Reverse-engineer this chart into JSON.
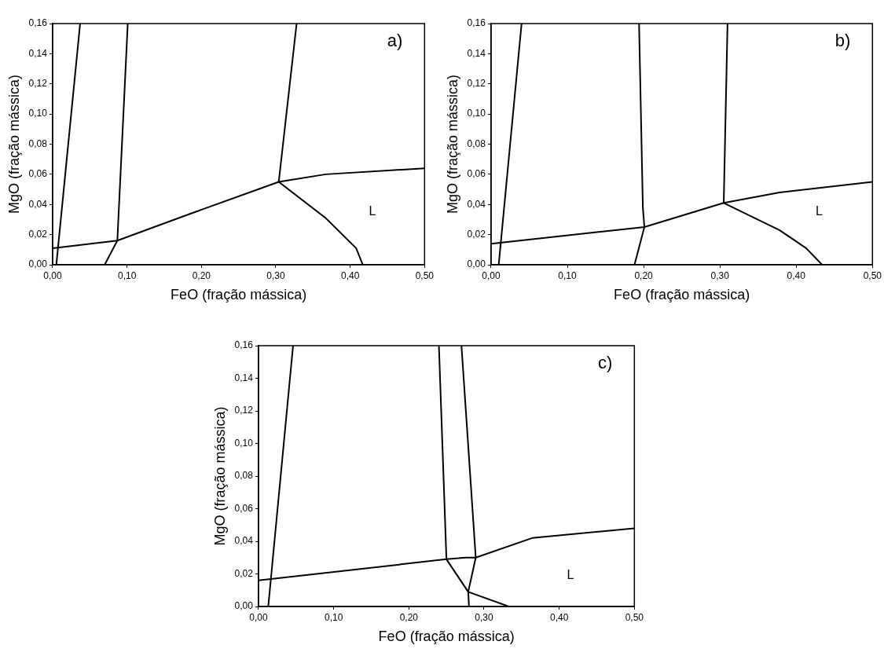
{
  "chart_data": [
    {
      "type": "line",
      "xlabel": "FeO (fração mássica)",
      "ylabel": "MgO (fração mássica)",
      "xlim": [
        0,
        0.5
      ],
      "ylim": [
        0,
        0.16
      ],
      "xticks": [
        {
          "value": 0,
          "label": "0,00"
        },
        {
          "value": 0.1,
          "label": "0,10"
        },
        {
          "value": 0.2,
          "label": "0,20"
        },
        {
          "value": 0.3,
          "label": "0,30"
        },
        {
          "value": 0.4,
          "label": "0,40"
        },
        {
          "value": 0.5,
          "label": "0,50"
        }
      ],
      "yticks": [
        {
          "value": 0,
          "label": "0,00"
        },
        {
          "value": 0.02,
          "label": "0,02"
        },
        {
          "value": 0.04,
          "label": "0,04"
        },
        {
          "value": 0.06,
          "label": "0,06"
        },
        {
          "value": 0.08,
          "label": "0,08"
        },
        {
          "value": 0.1,
          "label": "0,10"
        },
        {
          "value": 0.12,
          "label": "0,12"
        },
        {
          "value": 0.14,
          "label": "0,14"
        },
        {
          "value": 0.16,
          "label": "0,16"
        }
      ],
      "grid": false,
      "legend": false,
      "marker": "none",
      "line_style": "solid",
      "annotations": [
        "a)",
        "L"
      ],
      "series": [
        {
          "color": "#000000",
          "x": [
            0.005,
            0.037
          ],
          "values": [
            0,
            0.16
          ]
        },
        {
          "color": "#000000",
          "x": [
            0,
            0.087,
            0.186,
            0.304,
            0.367,
            0.5
          ],
          "values": [
            0.011,
            0.016,
            0.034,
            0.055,
            0.06,
            0.064
          ]
        },
        {
          "color": "#000000",
          "x": [
            0.07,
            0.087,
            0.101
          ],
          "values": [
            0,
            0.016,
            0.16
          ]
        },
        {
          "color": "#000000",
          "x": [
            0.304,
            0.328
          ],
          "values": [
            0.055,
            0.16
          ]
        },
        {
          "color": "#000000",
          "x": [
            0.304,
            0.367,
            0.408,
            0.417
          ],
          "values": [
            0.055,
            0.031,
            0.011,
            0
          ]
        }
      ]
    },
    {
      "type": "line",
      "xlabel": "FeO (fração mássica)",
      "ylabel": "MgO (fração mássica)",
      "xlim": [
        0,
        0.5
      ],
      "ylim": [
        0,
        0.16
      ],
      "xticks": [
        {
          "value": 0,
          "label": "0,00"
        },
        {
          "value": 0.1,
          "label": "0,10"
        },
        {
          "value": 0.2,
          "label": "0,20"
        },
        {
          "value": 0.3,
          "label": "0,30"
        },
        {
          "value": 0.4,
          "label": "0,40"
        },
        {
          "value": 0.5,
          "label": "0,50"
        }
      ],
      "yticks": [
        {
          "value": 0,
          "label": "0,00"
        },
        {
          "value": 0.02,
          "label": "0,02"
        },
        {
          "value": 0.04,
          "label": "0,04"
        },
        {
          "value": 0.06,
          "label": "0,06"
        },
        {
          "value": 0.08,
          "label": "0,08"
        },
        {
          "value": 0.1,
          "label": "0,10"
        },
        {
          "value": 0.12,
          "label": "0,12"
        },
        {
          "value": 0.14,
          "label": "0,14"
        },
        {
          "value": 0.16,
          "label": "0,16"
        }
      ],
      "grid": false,
      "legend": false,
      "marker": "none",
      "line_style": "solid",
      "annotations": [
        "b)",
        "L"
      ],
      "series": [
        {
          "color": "#000000",
          "x": [
            0.01,
            0.04
          ],
          "values": [
            0,
            0.16
          ]
        },
        {
          "color": "#000000",
          "x": [
            0,
            0.201,
            0.305,
            0.378,
            0.5
          ],
          "values": [
            0.014,
            0.025,
            0.041,
            0.048,
            0.055
          ]
        },
        {
          "color": "#000000",
          "x": [
            0.188,
            0.201,
            0.199,
            0.194
          ],
          "values": [
            0,
            0.025,
            0.038,
            0.16
          ]
        },
        {
          "color": "#000000",
          "x": [
            0.305,
            0.31
          ],
          "values": [
            0.041,
            0.16
          ]
        },
        {
          "color": "#000000",
          "x": [
            0.305,
            0.378,
            0.413,
            0.434
          ],
          "values": [
            0.041,
            0.023,
            0.011,
            0
          ]
        }
      ]
    },
    {
      "type": "line",
      "xlabel": "FeO (fração mássica)",
      "ylabel": "MgO (fração mássica)",
      "xlim": [
        0,
        0.5
      ],
      "ylim": [
        0,
        0.16
      ],
      "xticks": [
        {
          "value": 0,
          "label": "0,00"
        },
        {
          "value": 0.1,
          "label": "0,10"
        },
        {
          "value": 0.2,
          "label": "0,20"
        },
        {
          "value": 0.3,
          "label": "0,30"
        },
        {
          "value": 0.4,
          "label": "0,40"
        },
        {
          "value": 0.5,
          "label": "0,50"
        }
      ],
      "yticks": [
        {
          "value": 0,
          "label": "0,00"
        },
        {
          "value": 0.02,
          "label": "0,02"
        },
        {
          "value": 0.04,
          "label": "0,04"
        },
        {
          "value": 0.06,
          "label": "0,06"
        },
        {
          "value": 0.08,
          "label": "0,08"
        },
        {
          "value": 0.1,
          "label": "0,10"
        },
        {
          "value": 0.12,
          "label": "0,12"
        },
        {
          "value": 0.14,
          "label": "0,14"
        },
        {
          "value": 0.16,
          "label": "0,16"
        }
      ],
      "grid": false,
      "legend": false,
      "marker": "none",
      "line_style": "solid",
      "annotations": [
        "c)",
        "L"
      ],
      "series": [
        {
          "color": "#000000",
          "x": [
            0.013,
            0.046
          ],
          "values": [
            0,
            0.16
          ]
        },
        {
          "color": "#000000",
          "x": [
            0,
            0.25,
            0.276,
            0.289,
            0.364,
            0.5
          ],
          "values": [
            0.016,
            0.029,
            0.03,
            0.03,
            0.042,
            0.048
          ]
        },
        {
          "color": "#000000",
          "x": [
            0.24,
            0.25,
            0.279,
            0.333
          ],
          "values": [
            0.16,
            0.029,
            0.009,
            0
          ]
        },
        {
          "color": "#000000",
          "x": [
            0.27,
            0.289,
            0.279,
            0.28
          ],
          "values": [
            0.16,
            0.03,
            0.009,
            0
          ]
        }
      ]
    }
  ]
}
